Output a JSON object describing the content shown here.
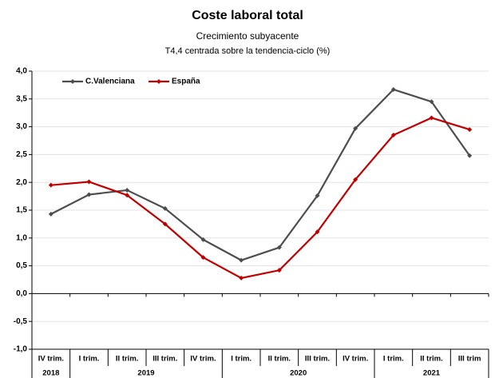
{
  "chart_data": {
    "type": "line",
    "title": "Coste laboral total",
    "subtitle": "Crecimiento subyacente",
    "subtitle2": "T4,4 centrada sobre la tendencia-ciclo (%)",
    "year_groups": [
      {
        "label": "2018",
        "categories": [
          "IV trim."
        ]
      },
      {
        "label": "2019",
        "categories": [
          "I trim.",
          "II trim.",
          "III trim.",
          "IV trim."
        ]
      },
      {
        "label": "2020",
        "categories": [
          "I trim.",
          "II trim.",
          "III trim.",
          "IV trim."
        ]
      },
      {
        "label": "2021",
        "categories": [
          "I trim.",
          "II trim.",
          "III trim"
        ]
      }
    ],
    "series": [
      {
        "name": "C.Valenciana",
        "color": "#4d4d4d",
        "values": [
          1.43,
          1.78,
          1.86,
          1.53,
          0.97,
          0.6,
          0.83,
          1.76,
          2.97,
          3.67,
          3.45,
          2.48
        ]
      },
      {
        "name": "España",
        "color": "#c00000",
        "values": [
          1.95,
          2.01,
          1.77,
          1.25,
          0.65,
          0.28,
          0.42,
          1.11,
          2.05,
          2.85,
          3.16,
          2.95
        ]
      }
    ],
    "ylim": [
      -1,
      4
    ],
    "yticks": [
      {
        "value": -1,
        "label": "-1,0"
      },
      {
        "value": -0.5,
        "label": "-0,5"
      },
      {
        "value": 0,
        "label": "0,0"
      },
      {
        "value": 0.5,
        "label": "0,5"
      },
      {
        "value": 1,
        "label": "1,0"
      },
      {
        "value": 1.5,
        "label": "1,5"
      },
      {
        "value": 2,
        "label": "2,0"
      },
      {
        "value": 2.5,
        "label": "2,5"
      },
      {
        "value": 3,
        "label": "3,0"
      },
      {
        "value": 3.5,
        "label": "3,5"
      },
      {
        "value": 4,
        "label": "4,0"
      }
    ],
    "grid": true,
    "legend": "top-left",
    "title_color": "#c00000"
  }
}
